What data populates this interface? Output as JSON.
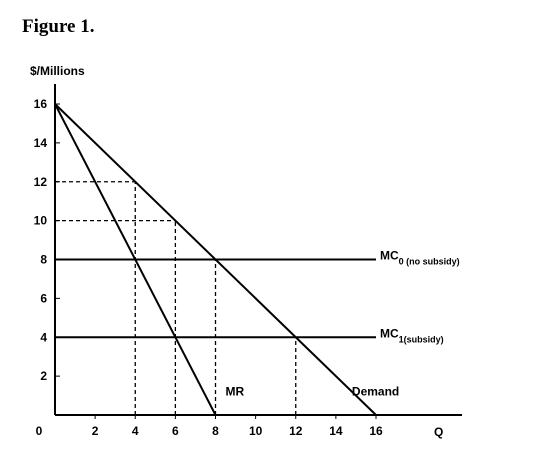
{
  "chart_data": {
    "type": "line",
    "title": "Figure 1.",
    "ylabel": "$/Millions",
    "xlabel": "Q",
    "xlim": [
      0,
      16
    ],
    "ylim": [
      0,
      16
    ],
    "x_ticks": [
      0,
      2,
      4,
      6,
      8,
      10,
      12,
      14,
      16
    ],
    "y_ticks": [
      2,
      4,
      6,
      8,
      10,
      12,
      14,
      16
    ],
    "grid": false,
    "series": [
      {
        "name": "Demand",
        "x": [
          0,
          16
        ],
        "y": [
          16,
          0
        ]
      },
      {
        "name": "MR",
        "x": [
          0,
          8
        ],
        "y": [
          16,
          0
        ]
      },
      {
        "name": "MC",
        "name_subscript": "0 (no subsidy)",
        "x": [
          0,
          16
        ],
        "y": [
          8,
          8
        ]
      },
      {
        "name": "MC",
        "name_subscript": "1(subsidy)",
        "x": [
          0,
          16
        ],
        "y": [
          4,
          4
        ]
      }
    ],
    "reference_lines": [
      {
        "x": [
          0,
          4
        ],
        "y": [
          12,
          12
        ]
      },
      {
        "x": [
          0,
          6
        ],
        "y": [
          10,
          10
        ]
      },
      {
        "x": [
          4,
          4
        ],
        "y": [
          0,
          12
        ]
      },
      {
        "x": [
          6,
          6
        ],
        "y": [
          0,
          10
        ]
      },
      {
        "x": [
          8,
          8
        ],
        "y": [
          0,
          8
        ]
      },
      {
        "x": [
          12,
          12
        ],
        "y": [
          0,
          4
        ]
      }
    ]
  }
}
